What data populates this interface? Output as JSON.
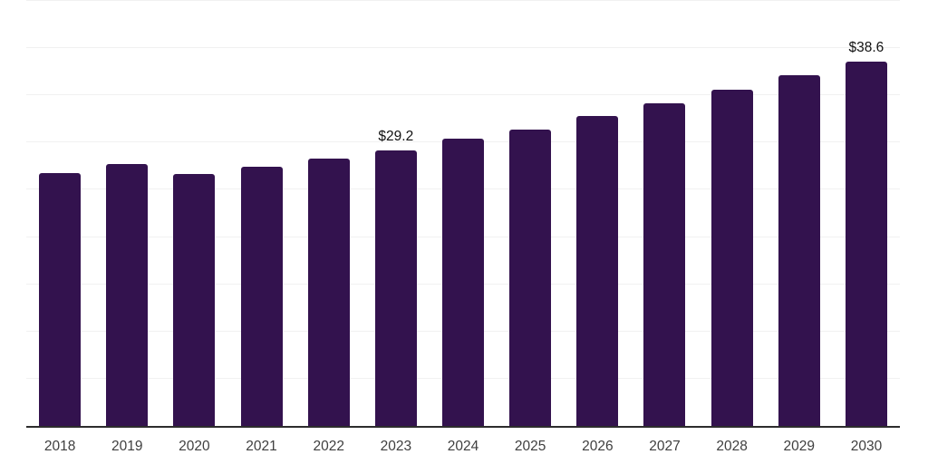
{
  "chart_data": {
    "type": "bar",
    "title": "",
    "xlabel": "",
    "ylabel": "",
    "categories": [
      "2018",
      "2019",
      "2020",
      "2021",
      "2022",
      "2023",
      "2024",
      "2025",
      "2026",
      "2027",
      "2028",
      "2029",
      "2030"
    ],
    "values": [
      26.8,
      27.7,
      26.7,
      27.4,
      28.3,
      29.2,
      30.4,
      31.4,
      32.8,
      34.2,
      35.6,
      37.1,
      38.6
    ],
    "data_labels": [
      "",
      "",
      "",
      "",
      "",
      "$29.2",
      "",
      "",
      "",
      "",
      "",
      "",
      "$38.6"
    ],
    "ylim": [
      0,
      45.1
    ],
    "gridline_step": 5,
    "grid": "horizontal-only",
    "legend": "none",
    "colors": {
      "bar": "#33124E",
      "gridline": "#f1f1f1",
      "axis_line": "#2d2d2d",
      "tick_label": "#3f3f3f",
      "value_label": "#111111",
      "background": "#ffffff"
    }
  }
}
